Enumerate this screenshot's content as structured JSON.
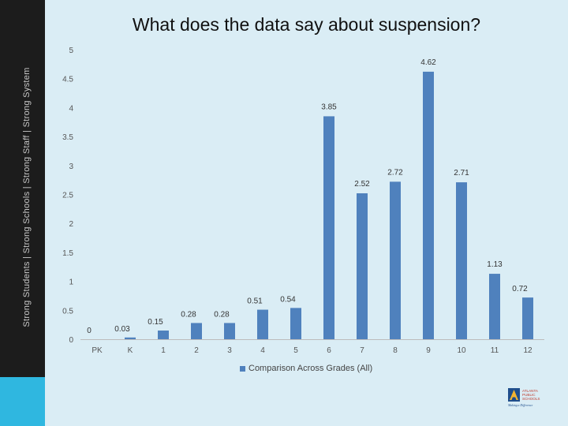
{
  "sidebar": {
    "tagline": "Strong Students  |  Strong Schools  |  Strong Staff  |  Strong System",
    "accent_color": "#2fb7e0"
  },
  "logo": {
    "line1": "ATLANTA",
    "line2": "PUBLIC",
    "line3": "SCHOOLS",
    "motto": "Making a Difference"
  },
  "chart_data": {
    "type": "bar",
    "title": "What does the data say about suspension?",
    "categories": [
      "PK",
      "K",
      "1",
      "2",
      "3",
      "4",
      "5",
      "6",
      "7",
      "8",
      "9",
      "10",
      "11",
      "12"
    ],
    "series": [
      {
        "name": "Comparison Across Grades (All)",
        "values": [
          0,
          0.03,
          0.15,
          0.28,
          0.28,
          0.51,
          0.54,
          3.85,
          2.52,
          2.72,
          4.62,
          2.71,
          1.13,
          0.72
        ],
        "labels": [
          "0",
          "0.03",
          "0.15",
          "0.28",
          "0.28",
          "0.51",
          "0.54",
          "3.85",
          "2.52",
          "2.72",
          "4.62",
          "2.71",
          "1.13",
          "0.72"
        ]
      }
    ],
    "yticks": [
      "0",
      "0.5",
      "1",
      "1.5",
      "2",
      "2.5",
      "3",
      "3.5",
      "4",
      "4.5",
      "5"
    ],
    "ylim": [
      0,
      5
    ],
    "bar_color": "#4f81bd",
    "grid": false,
    "legend_position": "bottom"
  }
}
